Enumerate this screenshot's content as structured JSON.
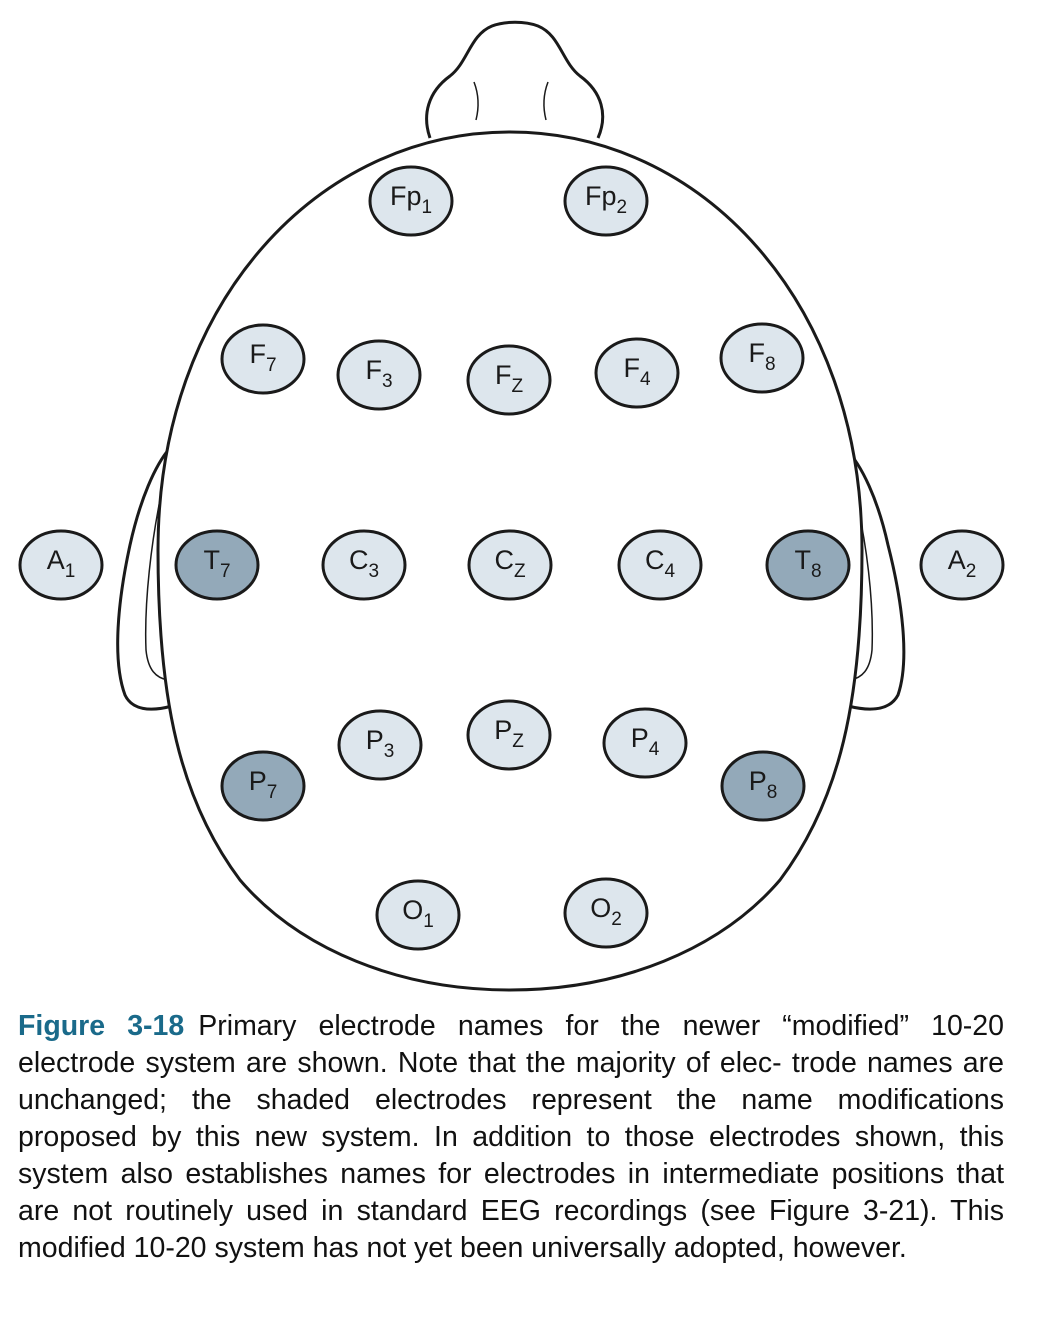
{
  "figure": {
    "label": "Figure 3-18",
    "caption": "Primary electrode names for the newer “modified” 10-20 electrode system are shown. Note that the majority of elec- trode names are unchanged; the shaded electrodes represent the name modifications proposed by this new system. In addition to those electrodes shown, this system also establishes names for electrodes in intermediate positions that are not routinely used in standard EEG recordings (see Figure 3-21). This modified 10-20 system has not yet been universally adopted, however."
  },
  "colors": {
    "normal_fill": "#dde6ed",
    "shaded_fill": "#93a9b9",
    "outline": "#1a1a1a",
    "caption_label": "#1a6a8a"
  },
  "electrodes": [
    {
      "id": "Fp1",
      "main": "Fp",
      "sub": "1",
      "shaded": false
    },
    {
      "id": "Fp2",
      "main": "Fp",
      "sub": "2",
      "shaded": false
    },
    {
      "id": "F7",
      "main": "F",
      "sub": "7",
      "shaded": false
    },
    {
      "id": "F3",
      "main": "F",
      "sub": "3",
      "shaded": false
    },
    {
      "id": "Fz",
      "main": "F",
      "sub": "Z",
      "shaded": false
    },
    {
      "id": "F4",
      "main": "F",
      "sub": "4",
      "shaded": false
    },
    {
      "id": "F8",
      "main": "F",
      "sub": "8",
      "shaded": false
    },
    {
      "id": "A1",
      "main": "A",
      "sub": "1",
      "shaded": false
    },
    {
      "id": "T7",
      "main": "T",
      "sub": "7",
      "shaded": true
    },
    {
      "id": "C3",
      "main": "C",
      "sub": "3",
      "shaded": false
    },
    {
      "id": "Cz",
      "main": "C",
      "sub": "Z",
      "shaded": false
    },
    {
      "id": "C4",
      "main": "C",
      "sub": "4",
      "shaded": false
    },
    {
      "id": "T8",
      "main": "T",
      "sub": "8",
      "shaded": true
    },
    {
      "id": "A2",
      "main": "A",
      "sub": "2",
      "shaded": false
    },
    {
      "id": "P7",
      "main": "P",
      "sub": "7",
      "shaded": true
    },
    {
      "id": "P3",
      "main": "P",
      "sub": "3",
      "shaded": false
    },
    {
      "id": "Pz",
      "main": "P",
      "sub": "Z",
      "shaded": false
    },
    {
      "id": "P4",
      "main": "P",
      "sub": "4",
      "shaded": false
    },
    {
      "id": "P8",
      "main": "P",
      "sub": "8",
      "shaded": true
    },
    {
      "id": "O1",
      "main": "O",
      "sub": "1",
      "shaded": false
    },
    {
      "id": "O2",
      "main": "O",
      "sub": "2",
      "shaded": false
    }
  ]
}
